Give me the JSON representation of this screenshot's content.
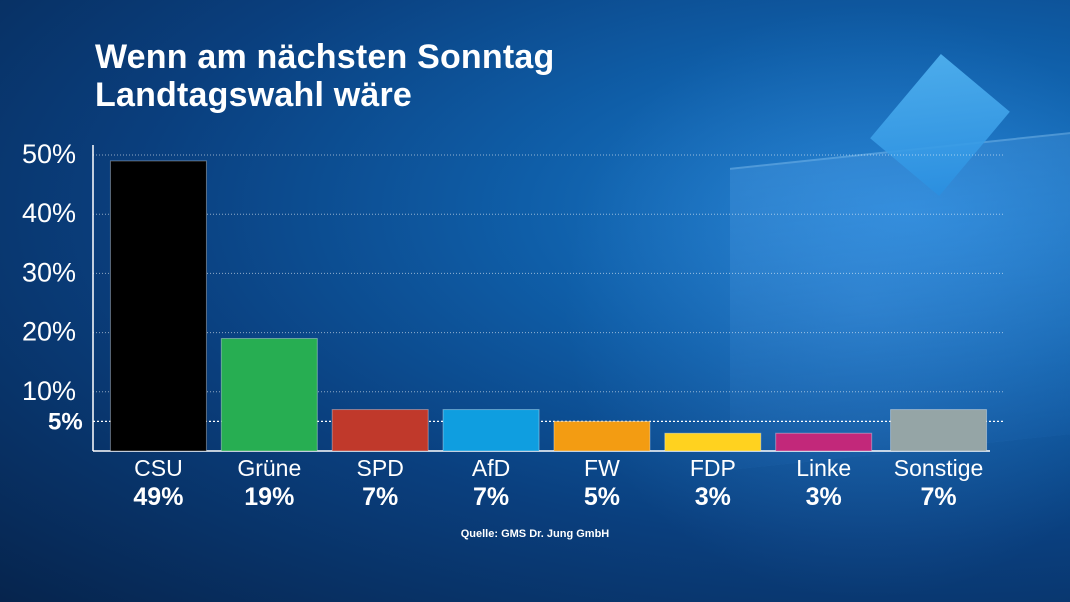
{
  "title_line1": "Wenn am nächsten Sonntag",
  "title_line2": "Landtagswahl wäre",
  "source": "Quelle: GMS Dr. Jung GmbH",
  "chart_data": {
    "type": "bar",
    "title": "Wenn am nächsten Sonntag Landtagswahl wäre",
    "categories": [
      "CSU",
      "Grüne",
      "SPD",
      "AfD",
      "FW",
      "FDP",
      "Linke",
      "Sonstige"
    ],
    "values": [
      49,
      19,
      7,
      7,
      5,
      3,
      3,
      7
    ],
    "value_labels": [
      "49%",
      "19%",
      "7%",
      "7%",
      "5%",
      "3%",
      "3%",
      "7%"
    ],
    "colors": [
      "#000000",
      "#27ae52",
      "#c0392b",
      "#0f9ee0",
      "#f39c12",
      "#ffd21f",
      "#c2287a",
      "#95a5a6"
    ],
    "ylim": [
      0,
      50
    ],
    "yticks": [
      10,
      20,
      30,
      40,
      50
    ],
    "ytick_labels": [
      "10%",
      "20%",
      "30%",
      "40%",
      "50%"
    ],
    "threshold": 5,
    "threshold_label": "5%",
    "grid": true
  }
}
